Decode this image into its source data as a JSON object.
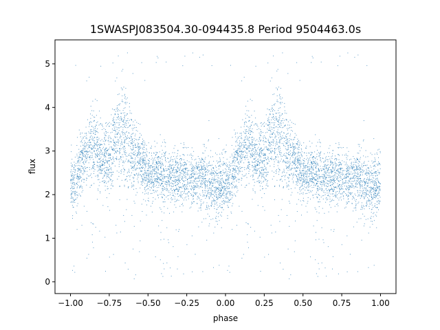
{
  "chart_data": {
    "type": "scatter",
    "title": "1SWASPJ083504.30-094435.8 Period 9504463.0s",
    "xlabel": "phase",
    "ylabel": "flux",
    "xlim": [
      -1.1,
      1.1
    ],
    "ylim": [
      -0.27,
      5.55
    ],
    "xticks": [
      -1.0,
      -0.75,
      -0.5,
      -0.25,
      0.0,
      0.25,
      0.5,
      0.75,
      1.0
    ],
    "xtick_labels": [
      "−1.00",
      "−0.75",
      "−0.50",
      "−0.25",
      "0.00",
      "0.25",
      "0.50",
      "0.75",
      "1.00"
    ],
    "yticks": [
      0,
      1,
      2,
      3,
      4,
      5
    ],
    "ytick_labels": [
      "0",
      "1",
      "2",
      "3",
      "4",
      "5"
    ],
    "grid": false,
    "marker_color": "#1f77b4",
    "phase_range": [
      -1.0,
      1.0
    ],
    "repeat_period": 1.0,
    "profile": {
      "phase": [
        0.0,
        0.04,
        0.05,
        0.1,
        0.15,
        0.2,
        0.25,
        0.3,
        0.35,
        0.4,
        0.45,
        0.5,
        0.55,
        0.6,
        0.65,
        0.7,
        0.75,
        0.8,
        0.85,
        0.9,
        0.95,
        1.0
      ],
      "flux": [
        2.3,
        2.2,
        2.6,
        2.9,
        3.1,
        2.9,
        2.8,
        3.3,
        3.3,
        2.9,
        2.8,
        2.5,
        2.5,
        2.45,
        2.4,
        2.4,
        2.4,
        2.3,
        2.4,
        2.2,
        2.1,
        2.3
      ],
      "spread": [
        0.35,
        0.35,
        0.35,
        0.4,
        0.45,
        0.4,
        0.4,
        0.55,
        0.55,
        0.4,
        0.35,
        0.3,
        0.3,
        0.3,
        0.3,
        0.3,
        0.3,
        0.3,
        0.3,
        0.35,
        0.35,
        0.35
      ]
    }
  }
}
